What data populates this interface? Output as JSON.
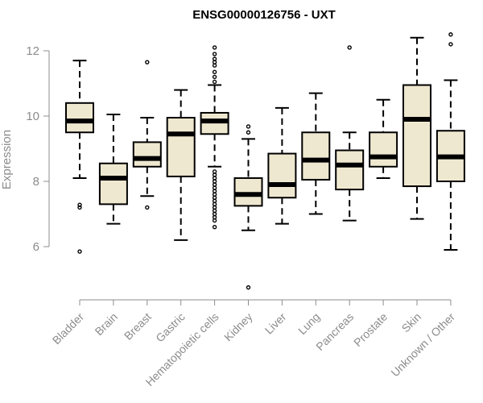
{
  "chart_data": {
    "type": "boxplot",
    "title": "ENSG00000126756 - UXT",
    "ylabel": "Expression",
    "xlabel": "",
    "ylim": [
      4.5,
      12.8
    ],
    "yticks": [
      6,
      8,
      10,
      12
    ],
    "box_fill": "#efe8d0",
    "median_color": "#000000",
    "categories": [
      "Bladder",
      "Brain",
      "Breast",
      "Gastric",
      "Hematopoietic cells",
      "Kidney",
      "Liver",
      "Lung",
      "Pancreas",
      "Prostate",
      "Skin",
      "Unknown / Other"
    ],
    "boxes": [
      {
        "whisker_low": 8.1,
        "q1": 9.5,
        "median": 9.85,
        "q3": 10.4,
        "whisker_high": 11.7,
        "outliers": [
          5.85,
          7.2,
          7.28
        ]
      },
      {
        "whisker_low": 6.7,
        "q1": 7.3,
        "median": 8.1,
        "q3": 8.55,
        "whisker_high": 10.05,
        "outliers": []
      },
      {
        "whisker_low": 7.55,
        "q1": 8.45,
        "median": 8.7,
        "q3": 9.2,
        "whisker_high": 9.95,
        "outliers": [
          7.2,
          11.65
        ]
      },
      {
        "whisker_low": 6.2,
        "q1": 8.15,
        "median": 9.45,
        "q3": 9.95,
        "whisker_high": 10.8,
        "outliers": []
      },
      {
        "whisker_low": 8.45,
        "q1": 9.45,
        "median": 9.85,
        "q3": 10.1,
        "whisker_high": 10.95,
        "outliers": [
          6.6,
          6.8,
          6.9,
          7.0,
          7.1,
          7.2,
          7.3,
          7.4,
          7.5,
          7.6,
          7.7,
          7.8,
          7.9,
          8.0,
          8.1,
          8.2,
          8.3,
          11.05,
          11.2,
          11.35,
          11.55,
          11.65,
          11.75,
          11.9,
          12.1
        ]
      },
      {
        "whisker_low": 6.5,
        "q1": 7.25,
        "median": 7.6,
        "q3": 8.1,
        "whisker_high": 9.3,
        "outliers": [
          4.75,
          9.5,
          9.68
        ]
      },
      {
        "whisker_low": 6.7,
        "q1": 7.5,
        "median": 7.9,
        "q3": 8.85,
        "whisker_high": 10.25,
        "outliers": []
      },
      {
        "whisker_low": 7.0,
        "q1": 8.05,
        "median": 8.65,
        "q3": 9.5,
        "whisker_high": 10.7,
        "outliers": []
      },
      {
        "whisker_low": 6.8,
        "q1": 7.75,
        "median": 8.5,
        "q3": 8.95,
        "whisker_high": 9.5,
        "outliers": [
          12.1
        ]
      },
      {
        "whisker_low": 8.1,
        "q1": 8.45,
        "median": 8.75,
        "q3": 9.5,
        "whisker_high": 10.5,
        "outliers": []
      },
      {
        "whisker_low": 6.85,
        "q1": 7.85,
        "median": 9.9,
        "q3": 10.95,
        "whisker_high": 12.4,
        "outliers": []
      },
      {
        "whisker_low": 5.9,
        "q1": 8.0,
        "median": 8.75,
        "q3": 9.55,
        "whisker_high": 11.1,
        "outliers": [
          12.2,
          12.5
        ]
      }
    ]
  }
}
